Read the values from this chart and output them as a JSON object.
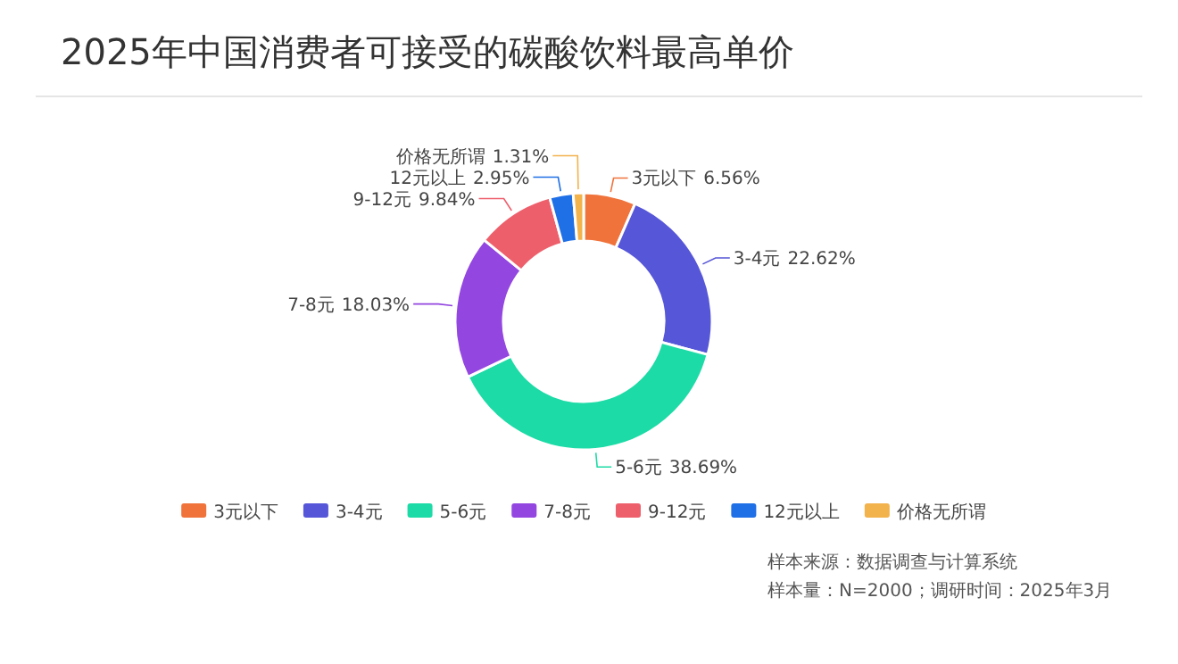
{
  "chart_data": {
    "type": "donut",
    "title": "2025年中国消费者可接受的碳酸饮料最高单价",
    "categories": [
      "3元以下",
      "3-4元",
      "5-6元",
      "7-8元",
      "9-12元",
      "12元以上",
      "价格无所谓"
    ],
    "values": [
      6.56,
      22.62,
      38.69,
      18.03,
      9.84,
      2.95,
      1.31
    ],
    "colors": [
      "#f0733c",
      "#5656d8",
      "#1ddba6",
      "#9346e0",
      "#ee5f6c",
      "#1f6fe6",
      "#f2b24c"
    ],
    "value_labels": [
      "6.56%",
      "22.62%",
      "38.69%",
      "18.03%",
      "9.84%",
      "2.95%",
      "1.31%"
    ],
    "legend": "bottom",
    "annotations": [
      "样本来源：数据调查与计算系统",
      "样本量：N=2000；调研时间：2025年3月"
    ]
  }
}
